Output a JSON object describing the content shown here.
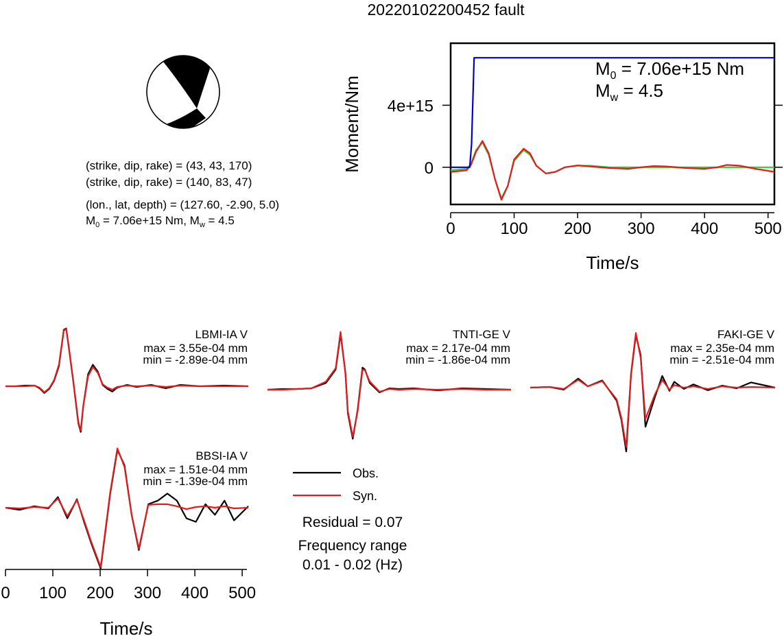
{
  "title": "20220102200452 fault",
  "colors": {
    "obs": "#000000",
    "syn": "#e41a1c",
    "moment_step": "#0000cc",
    "stf_green": "#33cc33",
    "beachball": "#000000"
  },
  "mechanism": {
    "line1": "(strike, dip, rake) = (43, 43, 170)",
    "line2": "(strike, dip, rake) = (140, 83, 47)",
    "line3": "(lon., lat, depth) = (127.60, -2.90, 5.0)",
    "m0_prefix": "M",
    "m0_sub": "0",
    "m0_rest": " = 7.06e+15 Nm, M",
    "mw_sub": "w",
    "mw_rest": " = 4.5"
  },
  "legend": {
    "obs_label": "Obs.",
    "syn_label": "Syn.",
    "residual": "Residual = 0.07",
    "freq_title": "Frequency range",
    "freq_range": "0.01 - 0.02 (Hz)"
  },
  "chart_data": [
    {
      "type": "line",
      "title": "",
      "xlabel": "Time/s",
      "ylabel": "Moment/Nm",
      "xlim": [
        0,
        510
      ],
      "ylim": [
        -2400000000000000.0,
        8000000000000000.0
      ],
      "xticks": [
        "0",
        "100",
        "200",
        "300",
        "400",
        "500"
      ],
      "yticks": [
        "0",
        "4e+15"
      ],
      "annotation_m0": {
        "sym": "M",
        "sub": "0",
        "text": " = 7.06e+15 Nm"
      },
      "annotation_mw": {
        "sym": "M",
        "sub": "w",
        "text": " = 4.5"
      },
      "series": [
        {
          "color": "blue",
          "x": [
            0,
            30,
            33,
            37,
            510
          ],
          "y": [
            0,
            0,
            1500000000000000.0,
            7060000000000000.0,
            7060000000000000.0
          ]
        },
        {
          "color": "green",
          "x": [
            0,
            25,
            32,
            40,
            50,
            60,
            70,
            80,
            90,
            100,
            115,
            125,
            135,
            150,
            165,
            180,
            200,
            220,
            250,
            280,
            300,
            350,
            400,
            450,
            510
          ],
          "y": [
            -200000000000000.0,
            -100000000000000.0,
            200000000000000.0,
            1100000000000000.0,
            1600000000000000.0,
            800000000000000.0,
            -800000000000000.0,
            -2000000000000000.0,
            -1200000000000000.0,
            400000000000000.0,
            1100000000000000.0,
            800000000000000.0,
            100000000000000.0,
            -400000000000000.0,
            -300000000000000.0,
            0,
            100000000000000.0,
            100000000000000.0,
            0,
            0,
            0,
            0,
            0,
            0,
            0
          ]
        },
        {
          "color": "red",
          "x": [
            0,
            25,
            32,
            40,
            50,
            60,
            70,
            80,
            90,
            100,
            115,
            125,
            135,
            150,
            165,
            180,
            200,
            220,
            250,
            280,
            300,
            320,
            340,
            370,
            400,
            420,
            435,
            455,
            480,
            510
          ],
          "y": [
            -300000000000000.0,
            -200000000000000.0,
            150000000000000.0,
            1000000000000000.0,
            1700000000000000.0,
            900000000000000.0,
            -800000000000000.0,
            -2100000000000000.0,
            -1200000000000000.0,
            500000000000000.0,
            1200000000000000.0,
            900000000000000.0,
            100000000000000.0,
            -400000000000000.0,
            -300000000000000.0,
            0,
            120000000000000.0,
            50000000000000.0,
            -50000000000000.0,
            -100000000000000.0,
            0,
            80000000000000.0,
            50000000000000.0,
            -50000000000000.0,
            -100000000000000.0,
            0,
            150000000000000.0,
            100000000000000.0,
            -100000000000000.0,
            -300000000000000.0
          ]
        }
      ]
    },
    {
      "type": "line",
      "title": "LBMI-IA V",
      "max_label": "max = 3.55e-04 mm",
      "min_label": "min = -2.89e-04 mm",
      "x": [
        0,
        20,
        40,
        60,
        70,
        80,
        90,
        100,
        110,
        120,
        125,
        130,
        140,
        150,
        155,
        160,
        170,
        180,
        190,
        200,
        210,
        220,
        230,
        250,
        270,
        300,
        330,
        360,
        400,
        450,
        500
      ],
      "series": [
        {
          "name": "Obs.",
          "values": [
            0,
            0,
            0.1,
            0.1,
            -0.3,
            -1.0,
            -0.4,
            0.8,
            3.0,
            8.4,
            8.6,
            6.0,
            0.5,
            -5.5,
            -6.8,
            -3.0,
            1.8,
            3.2,
            2.2,
            0.2,
            -0.4,
            -0.8,
            -0.2,
            0.2,
            -0.1,
            0.2,
            -0.3,
            0.2,
            0,
            0.1,
            0
          ]
        },
        {
          "name": "Syn.",
          "values": [
            0,
            0,
            0,
            0.1,
            -0.2,
            -0.9,
            -0.3,
            0.9,
            3.2,
            8.3,
            8.5,
            6.1,
            0.6,
            -5.3,
            -6.6,
            -3.0,
            1.5,
            2.9,
            2.0,
            0.3,
            -0.2,
            -0.5,
            -0.1,
            0.1,
            0,
            0.1,
            -0.1,
            0.1,
            0,
            0,
            0
          ]
        }
      ]
    },
    {
      "type": "line",
      "title": "TNTI-GE V",
      "max_label": "max = 2.17e-04 mm",
      "min_label": "min = -1.86e-04 mm",
      "x": [
        0,
        30,
        60,
        90,
        120,
        140,
        150,
        160,
        165,
        175,
        185,
        195,
        200,
        210,
        230,
        250,
        270,
        300,
        350,
        400,
        450,
        500
      ],
      "series": [
        {
          "name": "Obs.",
          "values": [
            0,
            0.1,
            0.1,
            0.2,
            1.0,
            3.0,
            8.3,
            2.5,
            -3.5,
            -7.3,
            -3.0,
            3.3,
            3.0,
            1.0,
            -0.4,
            0.2,
            0.1,
            0.2,
            -0.1,
            0.2,
            0.1,
            0
          ]
        },
        {
          "name": "Syn.",
          "values": [
            0,
            0,
            0.1,
            0.2,
            1.2,
            3.2,
            8.6,
            2.4,
            -3.2,
            -7.0,
            -3.2,
            3.0,
            2.9,
            1.2,
            -0.3,
            0.1,
            0,
            0.1,
            0,
            0.1,
            0,
            0
          ]
        }
      ]
    },
    {
      "type": "line",
      "title": "FAKI-GE V",
      "max_label": "max = 2.35e-04 mm",
      "min_label": "min = -2.51e-04 mm",
      "x": [
        0,
        40,
        70,
        100,
        120,
        150,
        180,
        190,
        200,
        210,
        220,
        230,
        240,
        260,
        275,
        290,
        300,
        320,
        340,
        370,
        400,
        430,
        460,
        510
      ],
      "series": [
        {
          "name": "Obs.",
          "values": [
            0,
            0.1,
            -0.3,
            1.4,
            0.2,
            1.1,
            -2.0,
            -5.0,
            -9.8,
            2.0,
            8.1,
            5.0,
            -6.0,
            -1.4,
            1.8,
            -0.5,
            0.9,
            -0.2,
            0.5,
            -0.4,
            0.3,
            -0.1,
            0.8,
            0
          ]
        },
        {
          "name": "Syn.",
          "values": [
            0,
            0.1,
            -0.2,
            1.2,
            0.2,
            1.0,
            -1.8,
            -4.7,
            -9.1,
            2.2,
            8.4,
            4.6,
            -4.8,
            -1.0,
            1.2,
            -0.3,
            0.4,
            0,
            0.2,
            -0.2,
            0.2,
            0,
            0.1,
            0
          ]
        }
      ]
    },
    {
      "type": "line",
      "title": "BBSI-IA V",
      "max_label": "max = 1.51e-04 mm",
      "min_label": "min = -1.39e-04 mm",
      "xlabel": "Time/s",
      "xlim": [
        0,
        510
      ],
      "xticks": [
        "0",
        "100",
        "200",
        "300",
        "400",
        "500"
      ],
      "x": [
        0,
        30,
        60,
        90,
        110,
        130,
        150,
        165,
        180,
        200,
        220,
        235,
        250,
        265,
        280,
        300,
        320,
        340,
        360,
        380,
        400,
        420,
        440,
        460,
        480,
        510
      ],
      "series": [
        {
          "name": "Obs.",
          "values": [
            0,
            -0.3,
            0.2,
            -0.1,
            1.5,
            -1.5,
            1.2,
            -2.0,
            -5.0,
            -8.6,
            2.0,
            8.2,
            6.0,
            -1.0,
            -6.0,
            0.5,
            1.0,
            2.0,
            1.0,
            -1.5,
            -2.0,
            0.5,
            -1.0,
            1.0,
            -1.8,
            0.2
          ]
        },
        {
          "name": "Syn.",
          "values": [
            0,
            -0.1,
            0.1,
            0,
            1.3,
            -1.2,
            1.1,
            -1.8,
            -4.8,
            -8.4,
            2.2,
            8.4,
            5.8,
            -1.0,
            -5.8,
            0.4,
            0.5,
            0.5,
            0.2,
            -0.2,
            0.1,
            0.2,
            0,
            0.2,
            -0.1,
            0
          ]
        }
      ]
    }
  ]
}
